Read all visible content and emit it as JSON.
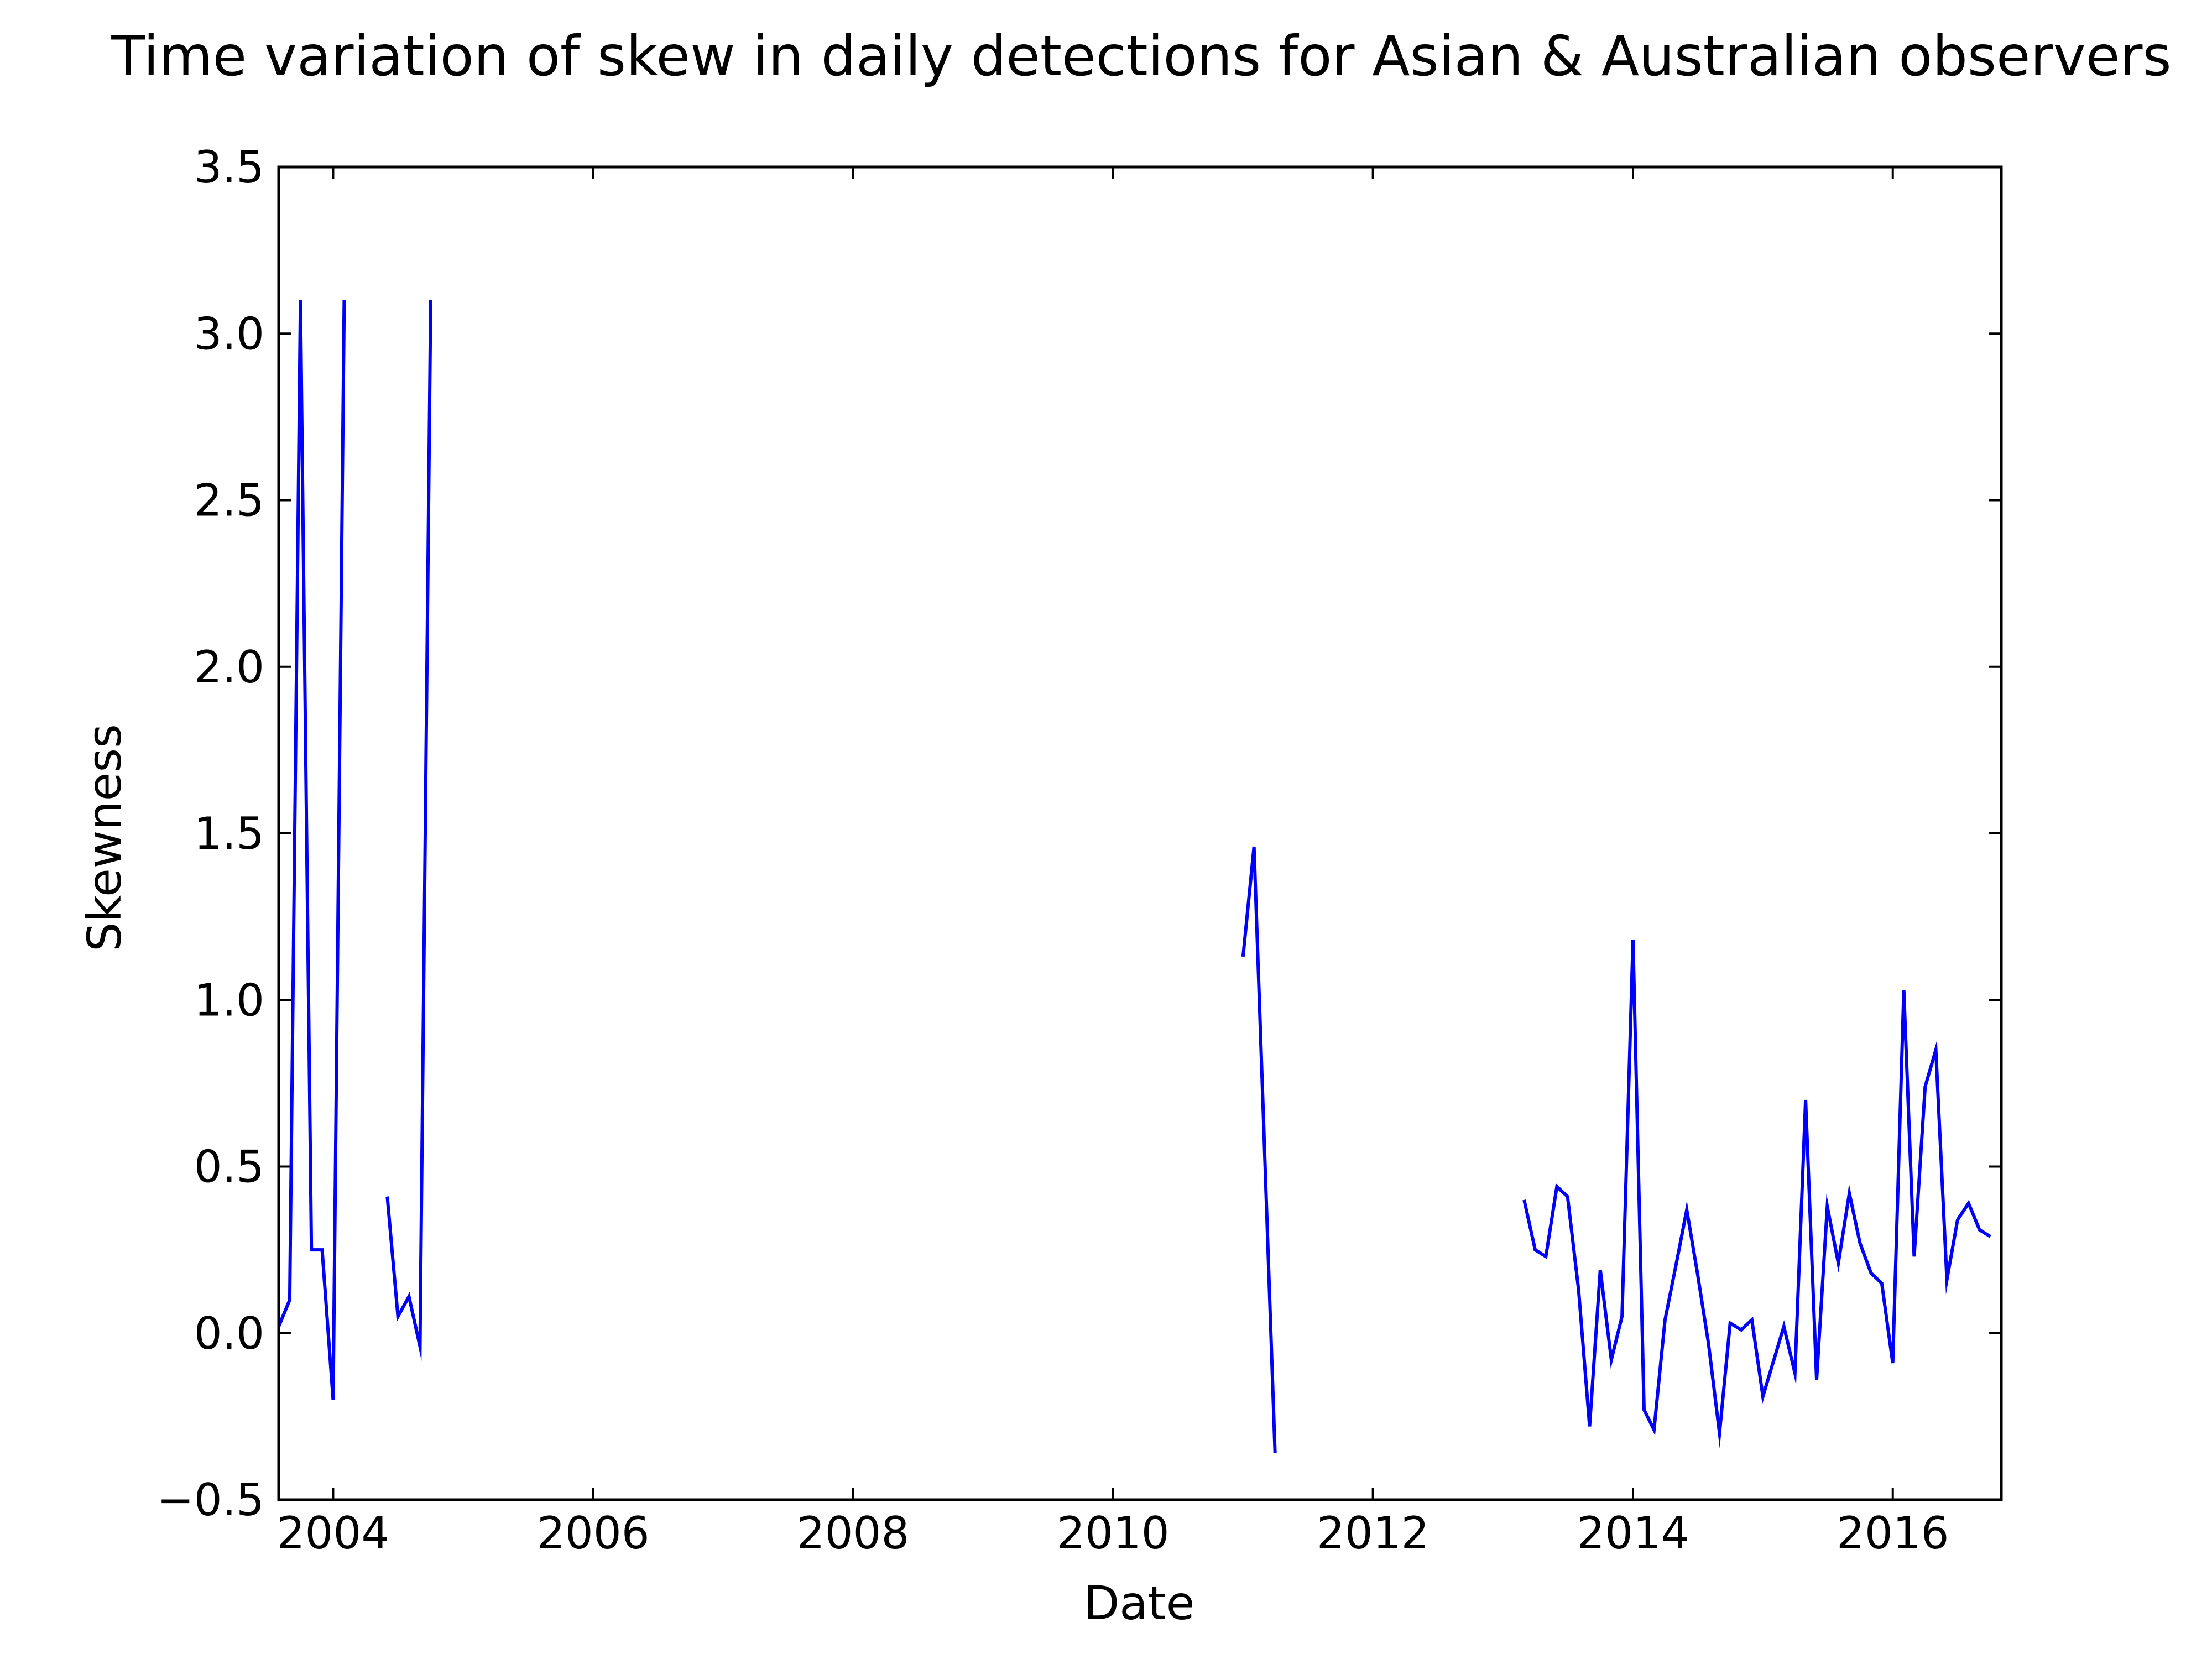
{
  "chart_data": {
    "type": "line",
    "title": "Time variation of skew in daily detections for Asian & Australian observers",
    "xlabel": "Date",
    "ylabel": "Skewness",
    "xlim": [
      "2003-08-01",
      "2016-11-01"
    ],
    "ylim": [
      -0.5,
      3.5
    ],
    "x_ticks": [
      {
        "date": "2004-01-01",
        "label": "2004"
      },
      {
        "date": "2006-01-01",
        "label": "2006"
      },
      {
        "date": "2008-01-01",
        "label": "2008"
      },
      {
        "date": "2010-01-01",
        "label": "2010"
      },
      {
        "date": "2012-01-01",
        "label": "2012"
      },
      {
        "date": "2014-01-01",
        "label": "2014"
      },
      {
        "date": "2016-01-01",
        "label": "2016"
      }
    ],
    "y_ticks": [
      {
        "value": -0.5,
        "label": "−0.5"
      },
      {
        "value": 0.0,
        "label": "0.0"
      },
      {
        "value": 0.5,
        "label": "0.5"
      },
      {
        "value": 1.0,
        "label": "1.0"
      },
      {
        "value": 1.5,
        "label": "1.5"
      },
      {
        "value": 2.0,
        "label": "2.0"
      },
      {
        "value": 2.5,
        "label": "2.5"
      },
      {
        "value": 3.0,
        "label": "3.0"
      },
      {
        "value": 3.5,
        "label": "3.5"
      }
    ],
    "grid": false,
    "legend": "none",
    "series": [
      {
        "color": "#0000ff",
        "segments": [
          [
            [
              "2003-08-01",
              0.02
            ],
            [
              "2003-09-01",
              0.1
            ],
            [
              "2003-10-01",
              3.1
            ],
            [
              "2003-11-01",
              0.25
            ],
            [
              "2003-12-01",
              0.25
            ],
            [
              "2004-01-01",
              -0.2
            ],
            [
              "2004-02-01",
              3.1
            ]
          ],
          [
            [
              "2004-06-01",
              0.41
            ],
            [
              "2004-07-01",
              0.05
            ],
            [
              "2004-08-01",
              0.11
            ],
            [
              "2004-09-01",
              -0.04
            ],
            [
              "2004-10-01",
              3.1
            ]
          ],
          [
            [
              "2011-01-01",
              1.13
            ],
            [
              "2011-02-01",
              1.46
            ],
            [
              "2011-04-01",
              -0.36
            ]
          ],
          [
            [
              "2013-03-01",
              0.4
            ],
            [
              "2013-04-01",
              0.25
            ],
            [
              "2013-05-01",
              0.23
            ],
            [
              "2013-06-01",
              0.44
            ],
            [
              "2013-07-01",
              0.41
            ],
            [
              "2013-08-01",
              0.13
            ],
            [
              "2013-09-01",
              -0.28
            ],
            [
              "2013-10-01",
              0.19
            ],
            [
              "2013-11-01",
              -0.08
            ],
            [
              "2013-12-01",
              0.05
            ],
            [
              "2014-01-01",
              1.18
            ],
            [
              "2014-02-01",
              -0.23
            ],
            [
              "2014-03-01",
              -0.29
            ],
            [
              "2014-04-01",
              0.04
            ],
            [
              "2014-05-01",
              0.2
            ],
            [
              "2014-06-01",
              0.37
            ],
            [
              "2014-07-01",
              0.18
            ],
            [
              "2014-08-01",
              -0.03
            ],
            [
              "2014-09-01",
              -0.3
            ],
            [
              "2014-10-01",
              0.03
            ],
            [
              "2014-11-01",
              0.01
            ],
            [
              "2014-12-01",
              0.04
            ],
            [
              "2015-01-01",
              -0.19
            ],
            [
              "2015-02-01",
              -0.08
            ],
            [
              "2015-03-01",
              0.02
            ],
            [
              "2015-04-01",
              -0.12
            ],
            [
              "2015-05-01",
              0.7
            ],
            [
              "2015-06-01",
              -0.14
            ],
            [
              "2015-07-01",
              0.38
            ],
            [
              "2015-08-01",
              0.21
            ],
            [
              "2015-09-01",
              0.42
            ],
            [
              "2015-10-01",
              0.27
            ],
            [
              "2015-11-01",
              0.18
            ],
            [
              "2015-12-01",
              0.15
            ],
            [
              "2016-01-01",
              -0.09
            ],
            [
              "2016-02-01",
              1.03
            ],
            [
              "2016-03-01",
              0.23
            ],
            [
              "2016-04-01",
              0.74
            ],
            [
              "2016-05-01",
              0.85
            ],
            [
              "2016-06-01",
              0.16
            ],
            [
              "2016-07-01",
              0.34
            ],
            [
              "2016-08-01",
              0.39
            ],
            [
              "2016-09-01",
              0.31
            ],
            [
              "2016-10-01",
              0.29
            ]
          ]
        ]
      }
    ]
  }
}
